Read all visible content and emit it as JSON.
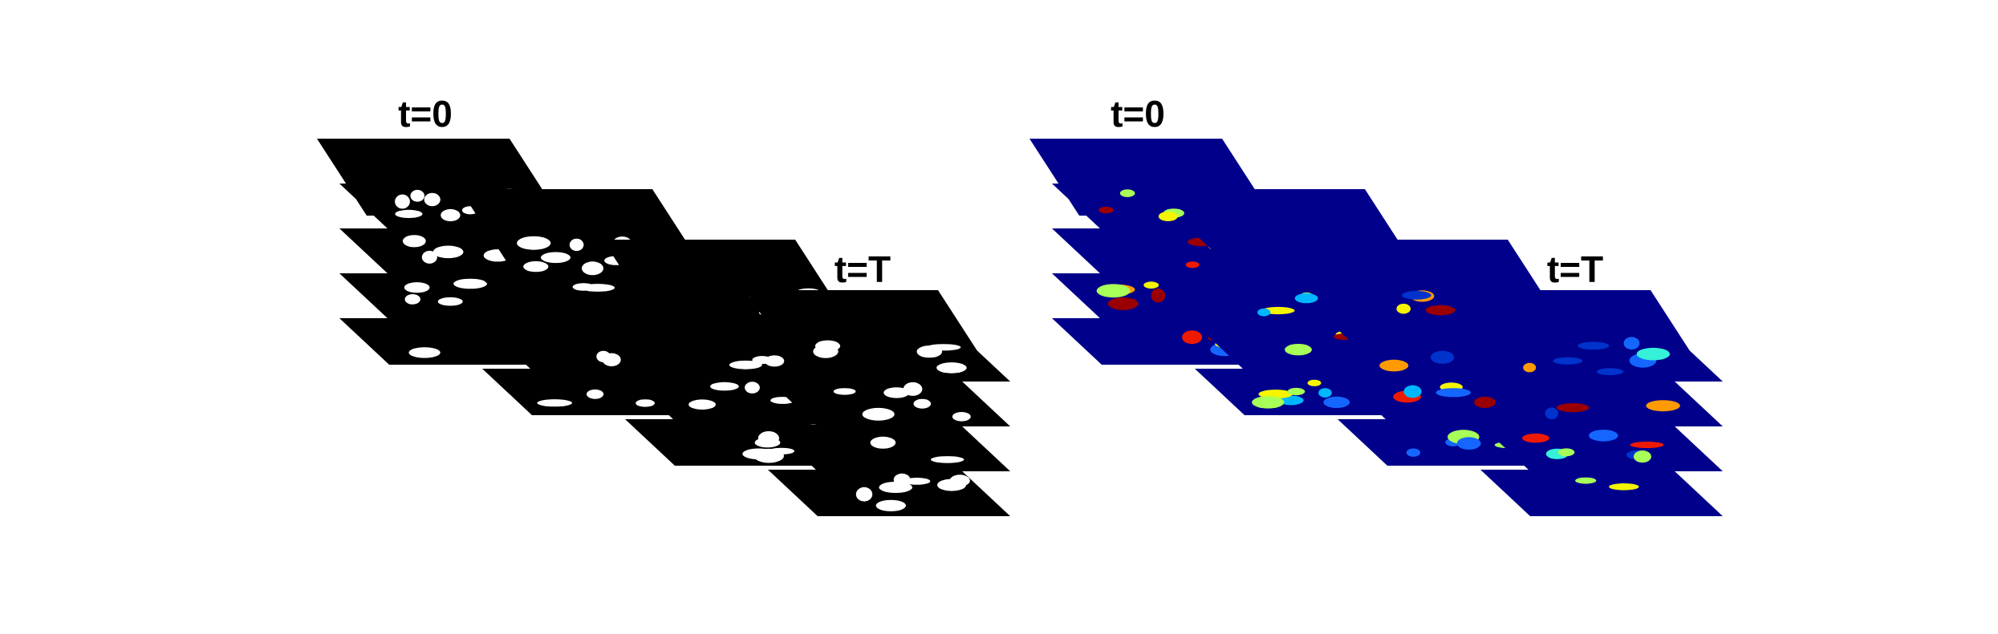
{
  "figure": {
    "panels": [
      {
        "id": "binary-masks",
        "plane_color": "#000000",
        "label_start": "t=0",
        "label_end": "t=T",
        "stacks": 4,
        "slices_per_stack": 5,
        "blob_colors": [
          "#ffffff"
        ]
      },
      {
        "id": "labeled-instances",
        "plane_color": "#00008b",
        "label_start": "t=0",
        "label_end": "t=T",
        "stacks": 4,
        "slices_per_stack": 5,
        "blob_colors": [
          "#0033cc",
          "#1466ff",
          "#00b7ff",
          "#36f0d8",
          "#a8ff58",
          "#f5f500",
          "#ff9a00",
          "#ee1a00",
          "#9a0000"
        ]
      }
    ]
  }
}
